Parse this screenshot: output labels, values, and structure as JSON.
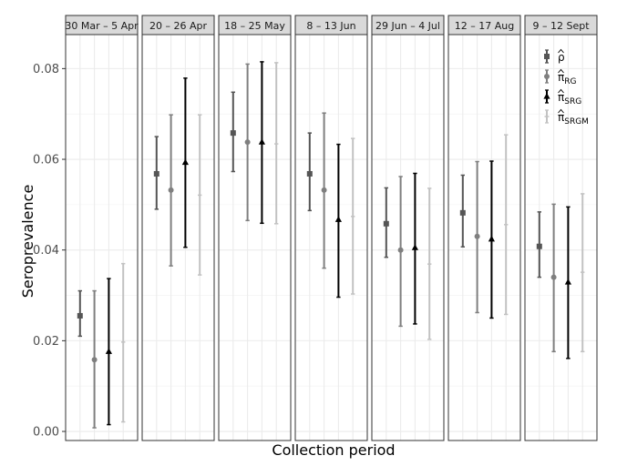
{
  "chart_data": {
    "type": "errorbar",
    "xlabel": "Collection period",
    "ylabel": "Seroprevalence",
    "ylim": [
      -0.002,
      0.0875
    ],
    "yticks": [
      "0.00",
      "0.02",
      "0.04",
      "0.06",
      "0.08"
    ],
    "grid": true,
    "legend_position": "top-right (inside last panel)",
    "facets": [
      "30 Mar – 5 Apr",
      "20 – 26 Apr",
      "18 – 25 May",
      "8 – 13 Jun",
      "29 Jun – 4 Jul",
      "12 – 17 Aug",
      "9 – 12 Sept"
    ],
    "series": [
      {
        "name": "ρ̂",
        "label_base": "ρ",
        "label_sub": "",
        "color": "#555555",
        "marker": "square",
        "estimate": [
          0.0255,
          0.0568,
          0.0658,
          0.0568,
          0.0458,
          0.0482,
          0.0408
        ],
        "lower": [
          0.021,
          0.049,
          0.0573,
          0.0487,
          0.0384,
          0.0407,
          0.034
        ],
        "upper": [
          0.031,
          0.065,
          0.0748,
          0.0658,
          0.0537,
          0.0565,
          0.0484
        ]
      },
      {
        "name": "π̂RG",
        "label_base": "π",
        "label_sub": "RG",
        "color": "#7f7f7f",
        "marker": "circle",
        "estimate": [
          0.0158,
          0.0532,
          0.0638,
          0.0532,
          0.04,
          0.043,
          0.034
        ],
        "lower": [
          0.0008,
          0.0365,
          0.0465,
          0.036,
          0.0232,
          0.0262,
          0.0176
        ],
        "upper": [
          0.031,
          0.0698,
          0.081,
          0.0702,
          0.0562,
          0.0595,
          0.0501
        ]
      },
      {
        "name": "π̂SRG",
        "label_base": "π",
        "label_sub": "SRG",
        "color": "#000000",
        "marker": "triangle",
        "estimate": [
          0.0176,
          0.0593,
          0.0638,
          0.0467,
          0.0405,
          0.0424,
          0.0329
        ],
        "lower": [
          0.0015,
          0.0406,
          0.0459,
          0.0296,
          0.0237,
          0.025,
          0.0161
        ],
        "upper": [
          0.0337,
          0.0779,
          0.0815,
          0.0633,
          0.0569,
          0.0596,
          0.0495
        ]
      },
      {
        "name": "π̂SRGM",
        "label_base": "π",
        "label_sub": "SRGM",
        "color": "#c2c2c2",
        "marker": "none",
        "estimate": [
          0.0197,
          0.0521,
          0.0634,
          0.0474,
          0.0369,
          0.0456,
          0.0351
        ],
        "lower": [
          0.0021,
          0.0345,
          0.0458,
          0.0303,
          0.0203,
          0.0258,
          0.0176
        ],
        "upper": [
          0.037,
          0.0698,
          0.0813,
          0.0646,
          0.0536,
          0.0654,
          0.0524
        ]
      }
    ]
  }
}
